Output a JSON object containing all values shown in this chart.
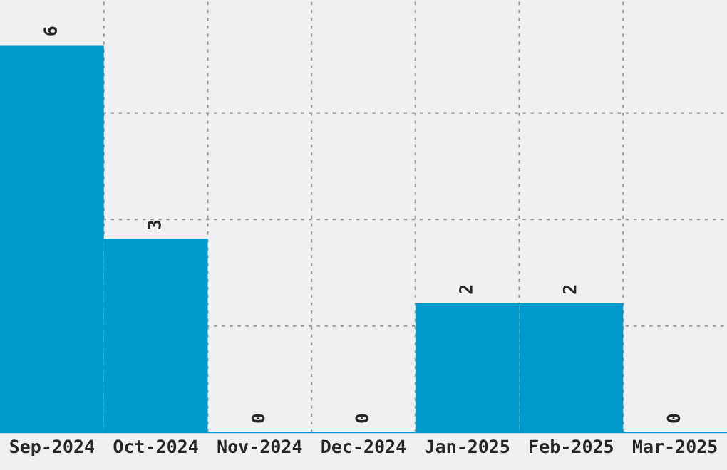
{
  "chart_data": {
    "type": "bar",
    "categories": [
      "Sep-2024",
      "Oct-2024",
      "Nov-2024",
      "Dec-2024",
      "Jan-2025",
      "Feb-2025",
      "Mar-2025"
    ],
    "values": [
      6,
      3,
      0,
      0,
      2,
      2,
      0
    ],
    "color": "#0099cc",
    "data_labels": true,
    "ylim": [
      0,
      6.7
    ],
    "yticks": [
      {
        "value": 1.65,
        "label": null
      },
      {
        "value": 3.3,
        "label": null
      },
      {
        "value": 4.95,
        "label": null
      }
    ],
    "grid": true,
    "tick_labels": "x"
  }
}
